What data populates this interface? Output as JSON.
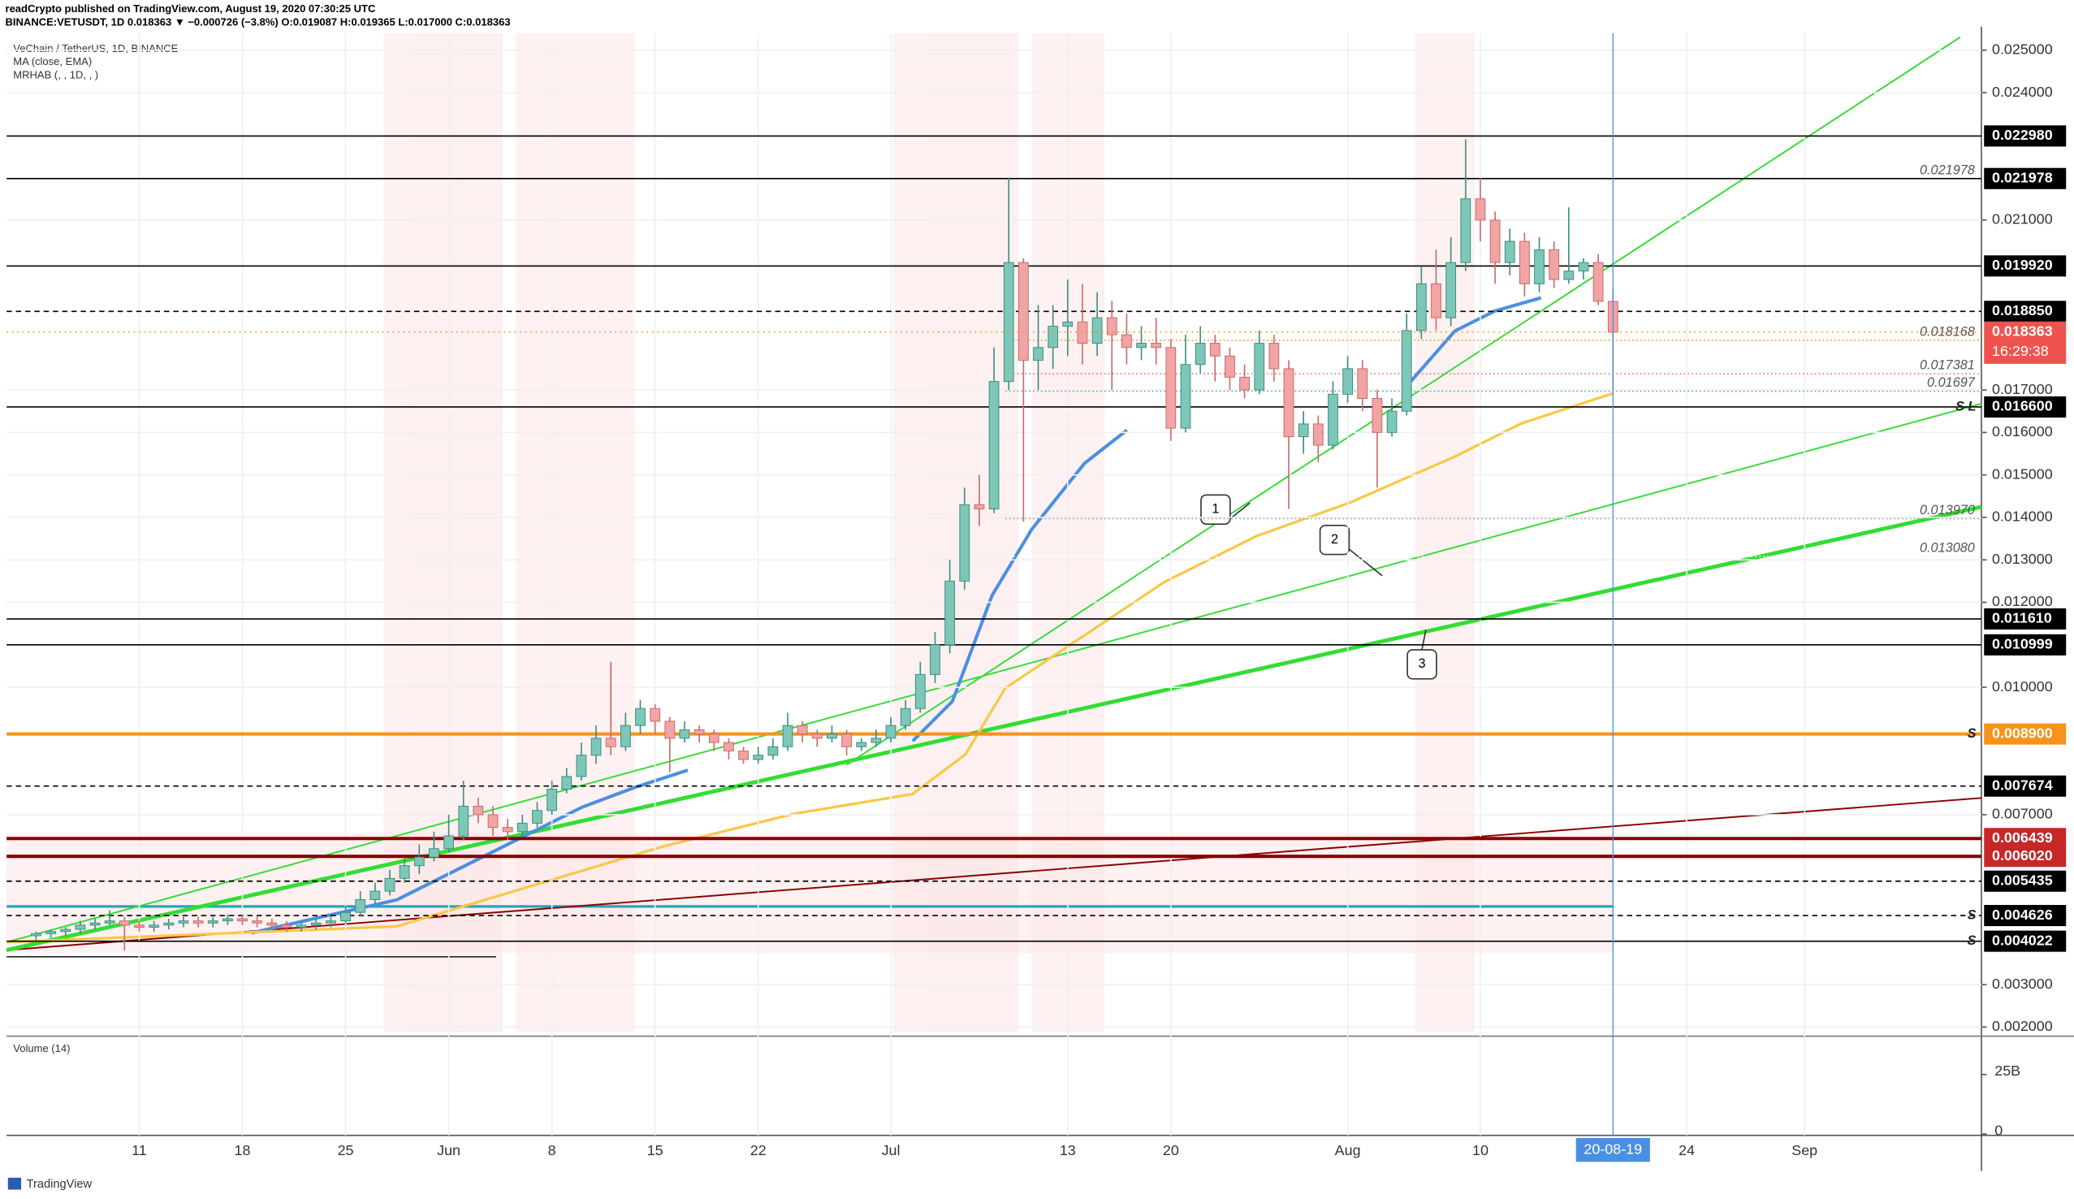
{
  "header": {
    "publisher": "readCrypto published on TradingView.com, August 19, 2020 07:30:25 UTC",
    "quote": "BINANCE:VETUSDT, 1D  0.018363 ▼ −0.000726 (−3.8%) O:0.019087 H:0.019365 L:0.017000 C:0.018363"
  },
  "footer": {
    "brand": "TradingView"
  },
  "annotations": [
    "1",
    "2",
    "3"
  ],
  "chart_data": {
    "type": "candlestick",
    "title": "VeChain / TetherUS, 1D, BINANCE",
    "indicators": [
      "MA (close, EMA)",
      "MRHAB (, , 1D, , )"
    ],
    "up_color": "#7cc7b8",
    "down_color": "#f2a3a3",
    "x": [
      "2020-05-04",
      "2020-05-05",
      "2020-05-06",
      "2020-05-07",
      "2020-05-08",
      "2020-05-09",
      "2020-05-10",
      "2020-05-11",
      "2020-05-12",
      "2020-05-13",
      "2020-05-14",
      "2020-05-15",
      "2020-05-16",
      "2020-05-17",
      "2020-05-18",
      "2020-05-19",
      "2020-05-20",
      "2020-05-21",
      "2020-05-22",
      "2020-05-23",
      "2020-05-24",
      "2020-05-25",
      "2020-05-26",
      "2020-05-27",
      "2020-05-28",
      "2020-05-29",
      "2020-05-30",
      "2020-05-31",
      "2020-06-01",
      "2020-06-02",
      "2020-06-03",
      "2020-06-04",
      "2020-06-05",
      "2020-06-06",
      "2020-06-07",
      "2020-06-08",
      "2020-06-09",
      "2020-06-10",
      "2020-06-11",
      "2020-06-12",
      "2020-06-13",
      "2020-06-14",
      "2020-06-15",
      "2020-06-16",
      "2020-06-17",
      "2020-06-18",
      "2020-06-19",
      "2020-06-20",
      "2020-06-21",
      "2020-06-22",
      "2020-06-23",
      "2020-06-24",
      "2020-06-25",
      "2020-06-26",
      "2020-06-27",
      "2020-06-28",
      "2020-06-29",
      "2020-06-30",
      "2020-07-01",
      "2020-07-02",
      "2020-07-03",
      "2020-07-04",
      "2020-07-05",
      "2020-07-06",
      "2020-07-07",
      "2020-07-08",
      "2020-07-09",
      "2020-07-10",
      "2020-07-11",
      "2020-07-12",
      "2020-07-13",
      "2020-07-14",
      "2020-07-15",
      "2020-07-16",
      "2020-07-17",
      "2020-07-18",
      "2020-07-19",
      "2020-07-20",
      "2020-07-21",
      "2020-07-22",
      "2020-07-23",
      "2020-07-24",
      "2020-07-25",
      "2020-07-26",
      "2020-07-27",
      "2020-07-28",
      "2020-07-29",
      "2020-07-30",
      "2020-07-31",
      "2020-08-01",
      "2020-08-02",
      "2020-08-03",
      "2020-08-04",
      "2020-08-05",
      "2020-08-06",
      "2020-08-07",
      "2020-08-08",
      "2020-08-09",
      "2020-08-10",
      "2020-08-11",
      "2020-08-12",
      "2020-08-13",
      "2020-08-14",
      "2020-08-15",
      "2020-08-16",
      "2020-08-17",
      "2020-08-18",
      "2020-08-19"
    ],
    "open": [
      0.00415,
      0.0042,
      0.00425,
      0.0043,
      0.0044,
      0.00445,
      0.0045,
      0.0044,
      0.00435,
      0.0044,
      0.00445,
      0.0045,
      0.00445,
      0.0045,
      0.00455,
      0.0045,
      0.00445,
      0.0044,
      0.00435,
      0.0044,
      0.00445,
      0.0045,
      0.0047,
      0.005,
      0.0052,
      0.0055,
      0.0058,
      0.006,
      0.0062,
      0.0065,
      0.0072,
      0.007,
      0.0067,
      0.0066,
      0.0068,
      0.0071,
      0.0076,
      0.0079,
      0.0084,
      0.0088,
      0.0086,
      0.0091,
      0.0095,
      0.0092,
      0.0088,
      0.009,
      0.0089,
      0.0087,
      0.0085,
      0.0083,
      0.0084,
      0.0086,
      0.0091,
      0.0089,
      0.0088,
      0.0089,
      0.0086,
      0.0087,
      0.0088,
      0.0091,
      0.0095,
      0.0103,
      0.011,
      0.0125,
      0.0143,
      0.0142,
      0.0172,
      0.02,
      0.0177,
      0.018,
      0.0185,
      0.0186,
      0.0181,
      0.0187,
      0.0183,
      0.018,
      0.0181,
      0.018,
      0.0161,
      0.0176,
      0.0181,
      0.0178,
      0.0173,
      0.017,
      0.0181,
      0.0175,
      0.0159,
      0.0162,
      0.0157,
      0.0169,
      0.0175,
      0.0168,
      0.016,
      0.0165,
      0.0184,
      0.0195,
      0.0187,
      0.02,
      0.0215,
      0.021,
      0.02,
      0.0205,
      0.0195,
      0.0203,
      0.0196,
      0.0198,
      0.02,
      0.019087
    ],
    "high": [
      0.00425,
      0.0043,
      0.00435,
      0.0045,
      0.00455,
      0.00475,
      0.0046,
      0.0045,
      0.0045,
      0.00455,
      0.0046,
      0.0046,
      0.0046,
      0.00465,
      0.00465,
      0.0046,
      0.00455,
      0.0045,
      0.0045,
      0.00455,
      0.0046,
      0.00485,
      0.0052,
      0.0054,
      0.0057,
      0.006,
      0.0063,
      0.0066,
      0.007,
      0.0078,
      0.0074,
      0.0072,
      0.0069,
      0.007,
      0.0073,
      0.0078,
      0.0081,
      0.0087,
      0.0091,
      0.0106,
      0.0094,
      0.0097,
      0.0096,
      0.0093,
      0.0092,
      0.0091,
      0.009,
      0.0088,
      0.0086,
      0.0086,
      0.0088,
      0.0094,
      0.0092,
      0.009,
      0.0091,
      0.009,
      0.0088,
      0.009,
      0.0093,
      0.0097,
      0.0106,
      0.0113,
      0.013,
      0.0147,
      0.015,
      0.018,
      0.022,
      0.0201,
      0.019,
      0.019,
      0.0196,
      0.0195,
      0.0193,
      0.0191,
      0.0188,
      0.0185,
      0.0187,
      0.0182,
      0.0183,
      0.0185,
      0.0183,
      0.018,
      0.0176,
      0.0184,
      0.0183,
      0.0177,
      0.0165,
      0.0164,
      0.0172,
      0.0178,
      0.0177,
      0.017,
      0.0168,
      0.0188,
      0.0199,
      0.0203,
      0.0206,
      0.0229,
      0.022,
      0.0212,
      0.0208,
      0.0207,
      0.0206,
      0.0205,
      0.0213,
      0.0201,
      0.0202,
      0.019365
    ],
    "low": [
      0.00405,
      0.0041,
      0.00415,
      0.0042,
      0.0043,
      0.0044,
      0.0038,
      0.00425,
      0.00425,
      0.0043,
      0.00435,
      0.00435,
      0.00435,
      0.0044,
      0.0044,
      0.00435,
      0.0043,
      0.00425,
      0.00425,
      0.0043,
      0.00435,
      0.00445,
      0.0046,
      0.0049,
      0.0051,
      0.0054,
      0.0056,
      0.0059,
      0.0061,
      0.0064,
      0.0068,
      0.0065,
      0.0064,
      0.0065,
      0.0067,
      0.007,
      0.0075,
      0.0078,
      0.0082,
      0.0084,
      0.0085,
      0.0089,
      0.0089,
      0.008,
      0.0087,
      0.0087,
      0.0085,
      0.0083,
      0.0082,
      0.0082,
      0.0083,
      0.0085,
      0.0087,
      0.0086,
      0.0087,
      0.0084,
      0.0085,
      0.0086,
      0.0087,
      0.009,
      0.0094,
      0.0101,
      0.0108,
      0.0123,
      0.0138,
      0.0141,
      0.017,
      0.0139,
      0.017,
      0.0175,
      0.0178,
      0.0176,
      0.0178,
      0.017,
      0.0176,
      0.0177,
      0.0176,
      0.0158,
      0.016,
      0.0174,
      0.0172,
      0.017,
      0.0168,
      0.0169,
      0.0172,
      0.0142,
      0.0155,
      0.0153,
      0.0156,
      0.0167,
      0.0165,
      0.0147,
      0.0159,
      0.0164,
      0.0182,
      0.0184,
      0.0185,
      0.0198,
      0.0205,
      0.0195,
      0.0197,
      0.0192,
      0.0193,
      0.0194,
      0.0195,
      0.0196,
      0.019,
      0.017
    ],
    "close": [
      0.0042,
      0.00425,
      0.0043,
      0.0044,
      0.00445,
      0.0045,
      0.0044,
      0.00435,
      0.0044,
      0.00445,
      0.0045,
      0.00445,
      0.0045,
      0.00455,
      0.0045,
      0.00445,
      0.0044,
      0.00435,
      0.0044,
      0.00445,
      0.0045,
      0.0047,
      0.005,
      0.0052,
      0.0055,
      0.0058,
      0.006,
      0.0062,
      0.0065,
      0.0072,
      0.007,
      0.0067,
      0.0066,
      0.0068,
      0.0071,
      0.0076,
      0.0079,
      0.0084,
      0.0088,
      0.0086,
      0.0091,
      0.0095,
      0.0092,
      0.0088,
      0.009,
      0.0089,
      0.0087,
      0.0085,
      0.0083,
      0.0084,
      0.0086,
      0.0091,
      0.0089,
      0.0088,
      0.0089,
      0.0086,
      0.0087,
      0.0088,
      0.0091,
      0.0095,
      0.0103,
      0.011,
      0.0125,
      0.0143,
      0.0142,
      0.0172,
      0.02,
      0.0177,
      0.018,
      0.0185,
      0.0186,
      0.0181,
      0.0187,
      0.0183,
      0.018,
      0.0181,
      0.018,
      0.0161,
      0.0176,
      0.0181,
      0.0178,
      0.0173,
      0.017,
      0.0181,
      0.0175,
      0.0159,
      0.0162,
      0.0157,
      0.0169,
      0.0175,
      0.0168,
      0.016,
      0.0165,
      0.0184,
      0.0195,
      0.0187,
      0.02,
      0.0215,
      0.021,
      0.02,
      0.0205,
      0.0195,
      0.0203,
      0.0196,
      0.0198,
      0.02,
      0.019087,
      0.018363
    ],
    "xlim": [
      "2020-05-02",
      "2020-09-13"
    ],
    "xticks": [
      {
        "value": "2020-05-11",
        "label": "11"
      },
      {
        "value": "2020-05-18",
        "label": "18"
      },
      {
        "value": "2020-05-25",
        "label": "25"
      },
      {
        "value": "2020-06-01",
        "label": "Jun"
      },
      {
        "value": "2020-06-08",
        "label": "8"
      },
      {
        "value": "2020-06-15",
        "label": "15"
      },
      {
        "value": "2020-06-22",
        "label": "22"
      },
      {
        "value": "2020-07-01",
        "label": "Jul"
      },
      {
        "value": "2020-07-13",
        "label": "13"
      },
      {
        "value": "2020-07-20",
        "label": "20"
      },
      {
        "value": "2020-08-01",
        "label": "Aug"
      },
      {
        "value": "2020-08-10",
        "label": "10"
      },
      {
        "value": "2020-08-24",
        "label": "24"
      },
      {
        "value": "2020-09-01",
        "label": "Sep"
      }
    ],
    "cursor": {
      "value": "2020-08-19",
      "label": "20-08-19"
    },
    "ylim": [
      0.00188,
      0.0254
    ],
    "yticks": [
      {
        "value": 0.025,
        "label": "0.025000"
      },
      {
        "value": 0.024,
        "label": "0.024000"
      },
      {
        "value": 0.021,
        "label": "0.021000"
      },
      {
        "value": 0.017,
        "label": "0.017000"
      },
      {
        "value": 0.016,
        "label": "0.016000"
      },
      {
        "value": 0.015,
        "label": "0.015000"
      },
      {
        "value": 0.014,
        "label": "0.014000"
      },
      {
        "value": 0.013,
        "label": "0.013000"
      },
      {
        "value": 0.012,
        "label": "0.012000"
      },
      {
        "value": 0.01,
        "label": "0.010000"
      },
      {
        "value": 0.007,
        "label": "0.007000"
      },
      {
        "value": 0.003,
        "label": "0.003000"
      },
      {
        "value": 0.002,
        "label": "0.002000"
      }
    ],
    "grid": true,
    "levels": [
      {
        "value": 0.02298,
        "label": "0.022980",
        "color": "#000000",
        "dash": false
      },
      {
        "value": 0.021978,
        "label": "0.021978",
        "color": "#000000",
        "dash": false
      },
      {
        "value": 0.01992,
        "label": "0.019920",
        "color": "#000000",
        "dash": false
      },
      {
        "value": 0.01885,
        "label": "0.018850",
        "color": "#000000",
        "dash": true
      },
      {
        "value": 0.0166,
        "label": "0.016600",
        "color": "#000000",
        "dash": false,
        "tag": "S L"
      },
      {
        "value": 0.01161,
        "label": "0.011610",
        "color": "#000000",
        "dash": false
      },
      {
        "value": 0.010999,
        "label": "0.010999",
        "color": "#000000",
        "dash": false
      },
      {
        "value": 0.0089,
        "label": "0.008900",
        "color": "#f7931a",
        "dash": false,
        "tag": "S"
      },
      {
        "value": 0.007674,
        "label": "0.007674",
        "color": "#000000",
        "dash": true
      },
      {
        "value": 0.006439,
        "label": "0.006439",
        "color": "#8b0000",
        "dash": false
      },
      {
        "value": 0.00602,
        "label": "0.006020",
        "color": "#8b0000",
        "dash": false
      },
      {
        "value": 0.005435,
        "label": "0.005435",
        "color": "#000000",
        "dash": true
      },
      {
        "value": 0.004626,
        "label": "0.004626",
        "color": "#000000",
        "dash": true,
        "tag": "S"
      },
      {
        "value": 0.004022,
        "label": "0.004022",
        "color": "#000000",
        "dash": false,
        "tag": "S"
      }
    ],
    "last_price": {
      "value": 0.018363,
      "label": "0.018363",
      "countdown": "16:29:38",
      "color": "#ef5350"
    },
    "fib_levels": [
      {
        "value": 0.021978,
        "label": "0.021978",
        "color": "#9e9e9e"
      },
      {
        "value": 0.018168,
        "label": "0.018168",
        "color": "#f7931a"
      },
      {
        "value": 0.017381,
        "label": "0.017381",
        "color": "#e57373"
      },
      {
        "value": 0.01697,
        "label": "0.01697",
        "color": "#4db6ac"
      },
      {
        "value": 0.01397,
        "label": "0.013970",
        "color": "#9e9e9e"
      },
      {
        "value": 0.01308,
        "label": "0.013080",
        "color": "#ffffff"
      }
    ],
    "volume": {
      "title": "Volume (14)",
      "ylim": [
        0,
        40000000000
      ],
      "yticks": [
        {
          "value": 25000000000,
          "label": "25B"
        },
        0
      ]
    }
  }
}
